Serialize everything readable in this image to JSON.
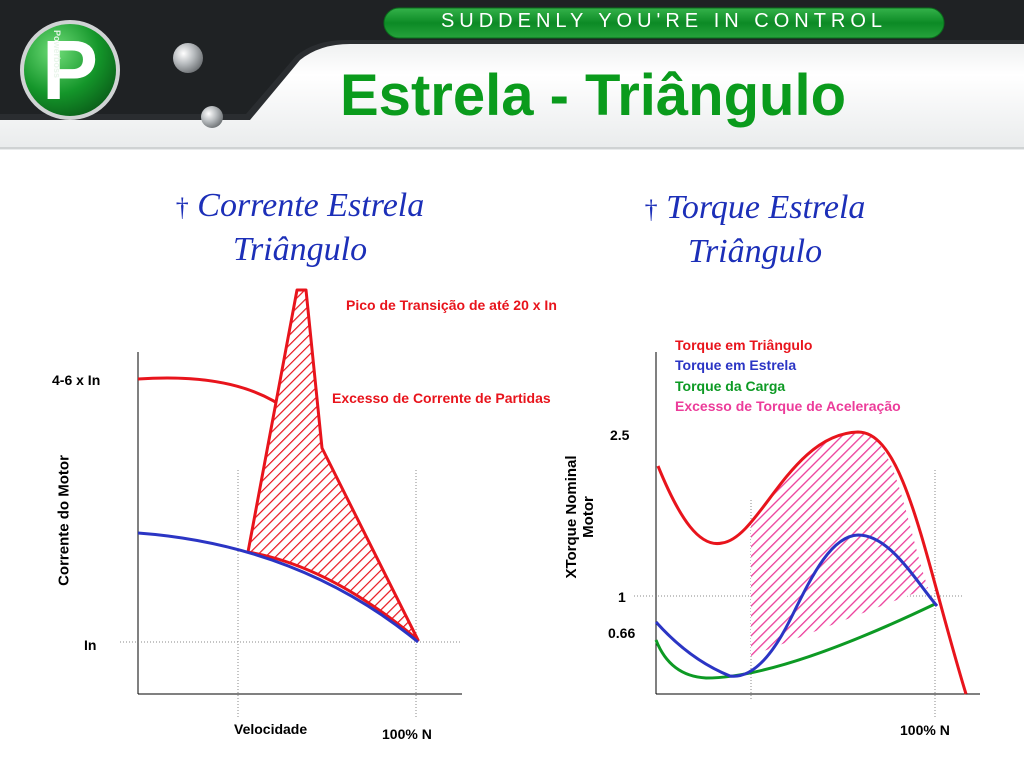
{
  "header": {
    "tagline": "SUDDENLY YOU'RE IN CONTROL",
    "logo_text": "Powerboss",
    "logo_letter": "P",
    "title": "Estrela  - Triângulo"
  },
  "left_panel": {
    "bullet": "†",
    "heading_line1": "Corrente Estrela",
    "heading_line2": "Triângulo",
    "annotation_peak": "Pico de Transição de até 20 x In",
    "annotation_excess": "Excesso de Corrente de Partidas",
    "y_axis_label": "Corrente do Motor",
    "x_axis_label": "Velocidade",
    "tick_high": "4-6 x In",
    "tick_low": "In",
    "x_tick": "100% N"
  },
  "right_panel": {
    "bullet": "†",
    "heading_line1": "Torque Estrela",
    "heading_line2": "Triângulo",
    "legend": [
      {
        "label": "Torque em Triângulo",
        "color": "#e8141c"
      },
      {
        "label": "Torque em Estrela",
        "color": "#2b35c4"
      },
      {
        "label": "Torque da Carga",
        "color": "#0d9a24"
      },
      {
        "label": "Excesso de Torque de Aceleração",
        "color": "#ec3c9a"
      }
    ],
    "y_axis_label_line1": "XTorque  Nominal",
    "y_axis_label_line2": "Motor",
    "y_ticks": [
      "2.5",
      "1",
      "0.66"
    ],
    "x_tick": "100% N"
  },
  "colors": {
    "title_green": "#0a9b1c",
    "heading_blue": "#1c2fb8",
    "delta_red": "#e8141c",
    "star_blue": "#2b35c4",
    "load_green": "#0d9a24",
    "excess_pink": "#ec3c9a"
  }
}
